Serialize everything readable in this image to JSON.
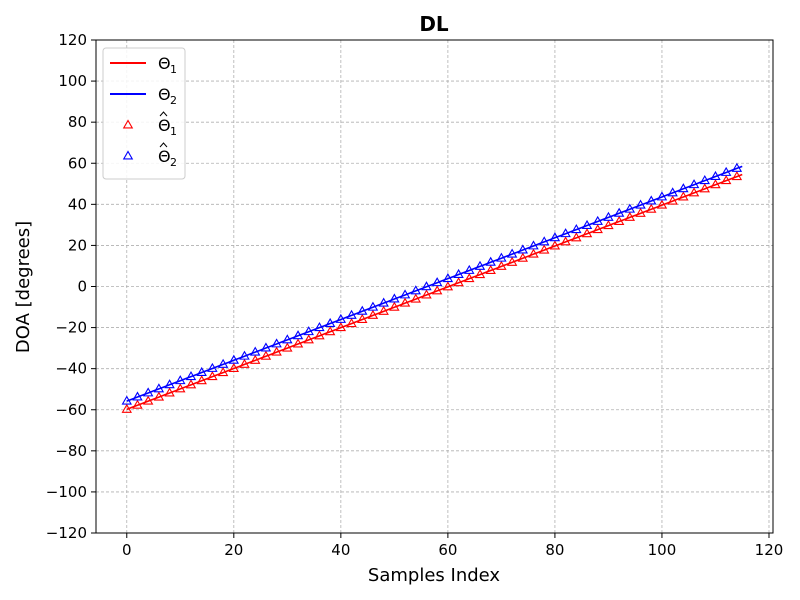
{
  "chart_data": {
    "type": "line",
    "title": "DL",
    "xlabel": "Samples Index",
    "ylabel": "DOA [degrees]",
    "xlim": [
      -5.75,
      120.75
    ],
    "ylim": [
      -120,
      120
    ],
    "x_ticks": [
      0,
      20,
      40,
      60,
      80,
      100,
      120
    ],
    "y_ticks": [
      -120,
      -100,
      -80,
      -60,
      -40,
      -20,
      0,
      20,
      40,
      60,
      80,
      100,
      120
    ],
    "grid": true,
    "legend_position": "top-left",
    "x": {
      "start": 0,
      "end": 115,
      "step": 1
    },
    "series": [
      {
        "name": "Θ1",
        "label_base": "Θ",
        "label_sub": "1",
        "hat": false,
        "style": "line",
        "color": "#ff0000",
        "y_start": -59.8,
        "y_end": 54.5
      },
      {
        "name": "Θ2",
        "label_base": "Θ",
        "label_sub": "2",
        "hat": false,
        "style": "line",
        "color": "#0000ff",
        "y_start": -55.8,
        "y_end": 58.5
      },
      {
        "name": "Θ̂1",
        "label_base": "Θ",
        "label_sub": "1",
        "hat": true,
        "style": "triangle-open",
        "color": "#ff0000",
        "y_start": -59.8,
        "y_end": 54.5,
        "every": 2
      },
      {
        "name": "Θ̂2",
        "label_base": "Θ",
        "label_sub": "2",
        "hat": true,
        "style": "triangle-open",
        "color": "#0000ff",
        "y_start": -55.8,
        "y_end": 58.5,
        "every": 2
      }
    ]
  }
}
